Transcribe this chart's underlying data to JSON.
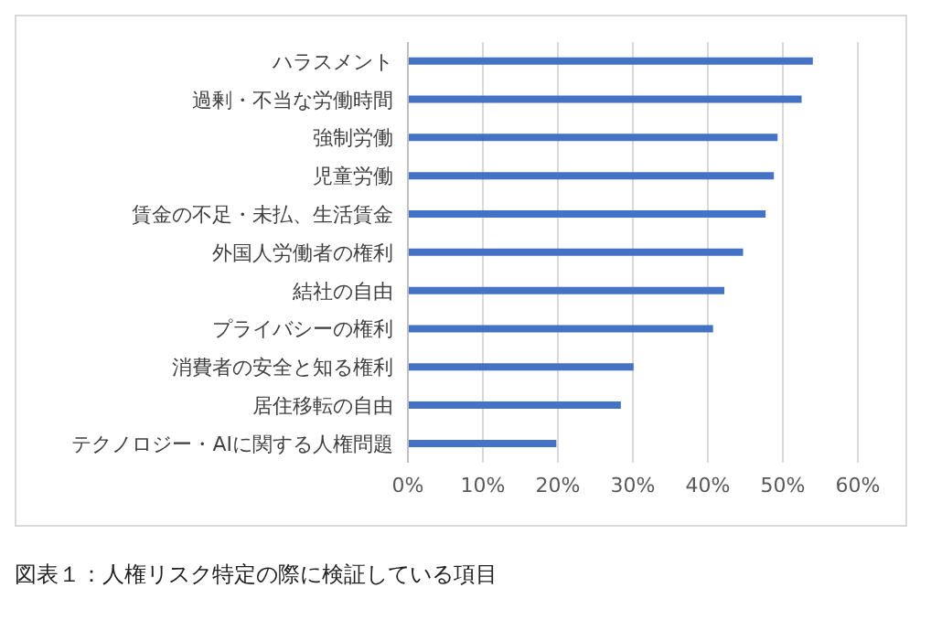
{
  "chart_data": {
    "type": "bar",
    "orientation": "horizontal",
    "categories": [
      "ハラスメント",
      "過剰・不当な労働時間",
      "強制労働",
      "児童労働",
      "賃金の不足・未払、生活賃金",
      "外国人労働者の権利",
      "結社の自由",
      "プライバシーの権利",
      "消費者の安全と知る権利",
      "居住移転の自由",
      "テクノロジー・AIに関する人権問題"
    ],
    "values": [
      54.0,
      52.5,
      49.3,
      48.8,
      47.7,
      44.7,
      42.2,
      40.7,
      30.1,
      28.4,
      19.8
    ],
    "color": "#4472c4",
    "xlim": [
      0,
      60
    ],
    "xticks": [
      {
        "value": 0,
        "label": "0%"
      },
      {
        "value": 10,
        "label": "10%"
      },
      {
        "value": 20,
        "label": "20%"
      },
      {
        "value": 30,
        "label": "30%"
      },
      {
        "value": 40,
        "label": "40%"
      },
      {
        "value": 50,
        "label": "50%"
      },
      {
        "value": 60,
        "label": "60%"
      }
    ],
    "grid": "x",
    "annotations": [
      "図表１：人権リスク特定の際に検証している項目"
    ]
  }
}
